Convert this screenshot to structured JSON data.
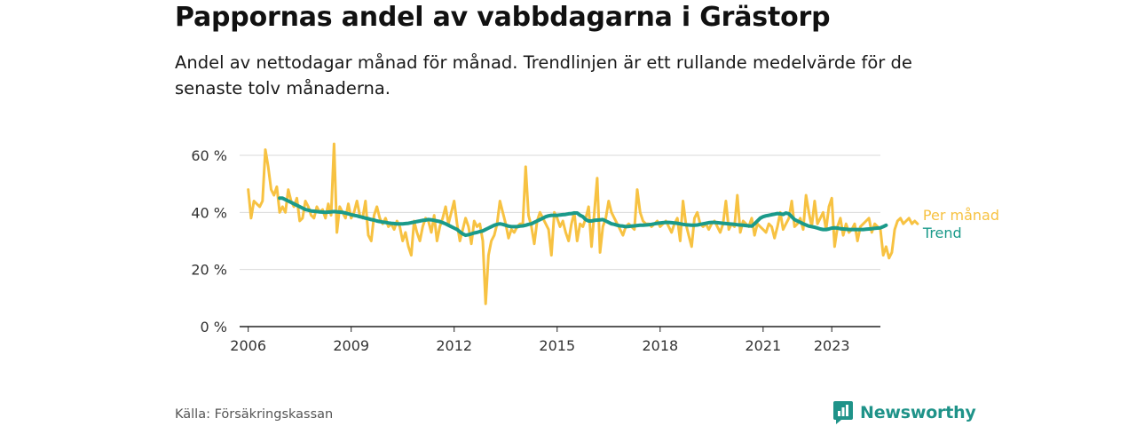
{
  "title": "Pappornas andel av vabbdagarna i Grästorp",
  "subtitle": "Andel av nettodagar månad för månad. Trendlinjen är ett rullande medelvärde för de senaste tolv månaderna.",
  "source": "Källa: Försäkringskassan",
  "brand": {
    "name": "Newsworthy",
    "icon": "newsworthy-logo-icon"
  },
  "colors": {
    "monthly": "#f7c242",
    "trend": "#1a9a8a",
    "grid": "#d9d9d9",
    "axis": "#222222"
  },
  "chart_data": {
    "type": "line",
    "title": "Pappornas andel av vabbdagarna i Grästorp",
    "xlabel": "",
    "ylabel": "",
    "x_ticks": [
      "2006",
      "2009",
      "2012",
      "2015",
      "2018",
      "2021",
      "2023"
    ],
    "y_ticks": [
      "0 %",
      "20 %",
      "40 %",
      "60 %"
    ],
    "ylim": [
      0,
      60
    ],
    "xlim": [
      "2005-10",
      "2024-06"
    ],
    "grid": "horizontal",
    "legend": "end-of-line labels",
    "series": [
      {
        "name": "Per månad",
        "start": "2006-01",
        "values": [
          48,
          38,
          44,
          43,
          42,
          44,
          62,
          56,
          48,
          46,
          49,
          40,
          42,
          40,
          48,
          44,
          42,
          45,
          37,
          38,
          44,
          42,
          39,
          38,
          42,
          40,
          41,
          38,
          43,
          39,
          64,
          33,
          42,
          40,
          38,
          43,
          38,
          40,
          44,
          39,
          38,
          44,
          32,
          30,
          39,
          42,
          38,
          36,
          38,
          35,
          36,
          34,
          37,
          35,
          30,
          33,
          28,
          25,
          37,
          33,
          30,
          35,
          38,
          37,
          33,
          39,
          30,
          35,
          38,
          42,
          36,
          40,
          44,
          36,
          30,
          34,
          38,
          35,
          29,
          37,
          35,
          36,
          30,
          8,
          25,
          30,
          32,
          36,
          44,
          40,
          36,
          31,
          34,
          33,
          35,
          36,
          36,
          56,
          39,
          35,
          29,
          37,
          40,
          38,
          36,
          34,
          25,
          40,
          38,
          35,
          37,
          33,
          30,
          36,
          40,
          30,
          36,
          35,
          38,
          42,
          28,
          40,
          52,
          26,
          35,
          38,
          44,
          40,
          38,
          36,
          34,
          32,
          35,
          36,
          35,
          34,
          48,
          40,
          37,
          36,
          36,
          35,
          36,
          37,
          35,
          36,
          37,
          35,
          33,
          36,
          38,
          30,
          44,
          36,
          32,
          28,
          38,
          40,
          36,
          35,
          36,
          34,
          36,
          37,
          35,
          33,
          36,
          44,
          34,
          36,
          35,
          46,
          33,
          37,
          36,
          35,
          38,
          32,
          36,
          35,
          34,
          33,
          36,
          35,
          31,
          35,
          40,
          34,
          36,
          38,
          44,
          35,
          36,
          38,
          34,
          46,
          40,
          35,
          44,
          36,
          38,
          40,
          34,
          42,
          45,
          28,
          35,
          38,
          32,
          36,
          33,
          34,
          36,
          30,
          35,
          36,
          37,
          38,
          33,
          36,
          35,
          34,
          25,
          28,
          24,
          26,
          34,
          37,
          38,
          36,
          37,
          38,
          36,
          37,
          36
        ]
      },
      {
        "name": "Trend",
        "start": "2006-12",
        "values": [
          45,
          45,
          44.5,
          44,
          43.5,
          43,
          42.5,
          42,
          41.5,
          41,
          40.8,
          40.5,
          40.4,
          40.3,
          40.2,
          40.1,
          40,
          40.1,
          40.2,
          40.3,
          40.2,
          40.1,
          40,
          39.8,
          39.5,
          39.2,
          39,
          38.8,
          38.5,
          38.3,
          38,
          37.8,
          37.5,
          37.3,
          37,
          36.8,
          36.6,
          36.5,
          36.3,
          36.2,
          36.1,
          36,
          36,
          36,
          36.1,
          36.2,
          36.4,
          36.6,
          36.8,
          37,
          37.2,
          37.3,
          37.5,
          37.4,
          37.2,
          37,
          36.8,
          36.4,
          36,
          35.5,
          35,
          34.5,
          34,
          33.2,
          32.5,
          32,
          32.2,
          32.5,
          32.8,
          33,
          33.3,
          33.5,
          34,
          34.5,
          35,
          35.5,
          35.8,
          36,
          35.8,
          35.5,
          35.2,
          35,
          35,
          35,
          35.2,
          35.3,
          35.5,
          35.8,
          36,
          36.5,
          37,
          37.5,
          38,
          38.5,
          38.8,
          39,
          39,
          39,
          39.1,
          39.2,
          39.3,
          39.5,
          39.6,
          39.8,
          39.8,
          39,
          38.5,
          37.5,
          37,
          37,
          37.2,
          37.3,
          37.4,
          37.5,
          37,
          36.5,
          36,
          35.8,
          35.5,
          35.3,
          35.2,
          35,
          35.1,
          35.2,
          35.3,
          35.4,
          35.5,
          35.5,
          35.6,
          35.7,
          35.8,
          36,
          36.2,
          36.3,
          36.4,
          36.5,
          36.5,
          36.4,
          36.3,
          36.2,
          36,
          35.8,
          35.7,
          35.6,
          35.5,
          35.5,
          35.6,
          35.8,
          36,
          36.2,
          36.4,
          36.5,
          36.5,
          36.4,
          36.3,
          36.2,
          36.1,
          36,
          35.9,
          35.8,
          35.7,
          35.6,
          35.5,
          35.4,
          35.3,
          35.2,
          36,
          37,
          38,
          38.5,
          38.8,
          39,
          39.2,
          39.4,
          39.6,
          39.5,
          39.3,
          39.8,
          39.5,
          38.5,
          37.5,
          37,
          36.5,
          36,
          35.6,
          35.2,
          35,
          34.8,
          34.5,
          34.2,
          34,
          34,
          34.2,
          34.5,
          34.6,
          34.5,
          34.3,
          34.2,
          34.1,
          34,
          34,
          34,
          34,
          34,
          34,
          34.1,
          34.2,
          34.3,
          34.4,
          34.5,
          34.6,
          35,
          35.5
        ]
      }
    ]
  }
}
